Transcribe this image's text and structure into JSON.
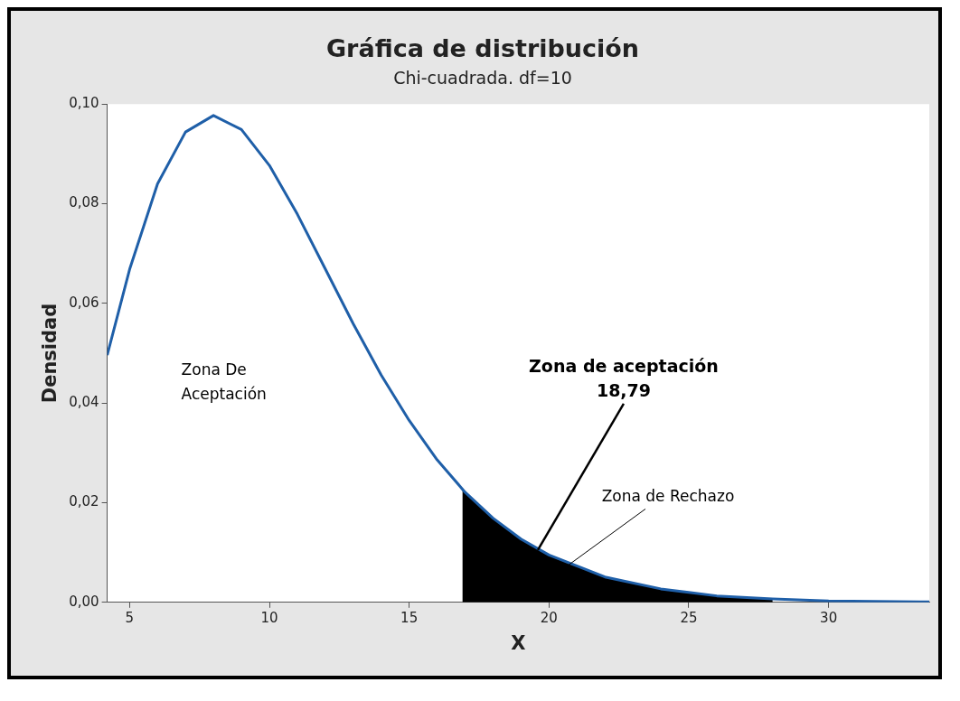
{
  "chart_data": {
    "type": "line",
    "title": "Gráfica de distribución",
    "subtitle": "Chi-cuadrada. df=10",
    "xlabel": "X",
    "ylabel": "Densidad",
    "series": [
      {
        "type": "line",
        "color": "#1f5fa8",
        "x": [
          4.2,
          5,
          6,
          7,
          8,
          9,
          10,
          11,
          12,
          13,
          14,
          15,
          16,
          17,
          18,
          19,
          20,
          22,
          24,
          26,
          28,
          30,
          33.6
        ],
        "values": [
          0.0496,
          0.0668,
          0.084,
          0.0944,
          0.0977,
          0.0949,
          0.0877,
          0.0779,
          0.0669,
          0.0559,
          0.0456,
          0.0365,
          0.0286,
          0.0221,
          0.0169,
          0.0127,
          0.0095,
          0.0051,
          0.0027,
          0.0013,
          0.0007,
          0.0003,
          0.0001
        ]
      },
      {
        "type": "area",
        "color": "#000000",
        "x": [
          16.9,
          17,
          18,
          19,
          20,
          22,
          24,
          26,
          28
        ],
        "values": [
          0.0228,
          0.0221,
          0.0169,
          0.0127,
          0.0095,
          0.0051,
          0.0027,
          0.0013,
          0.0007
        ]
      }
    ],
    "xlim": [
      4.2,
      33.6
    ],
    "ylim": [
      0,
      0.1
    ],
    "xticks": [
      5,
      10,
      15,
      20,
      25,
      30
    ],
    "yticks": [
      {
        "value": 0,
        "label": "0,00"
      },
      {
        "value": 0.02,
        "label": "0,02"
      },
      {
        "value": 0.04,
        "label": "0,04"
      },
      {
        "value": 0.06,
        "label": "0,06"
      },
      {
        "value": 0.08,
        "label": "0,08"
      },
      {
        "value": 0.1,
        "label": "0,10"
      }
    ],
    "grid": false,
    "legend": false,
    "marker": "none",
    "annotations": [
      "Zona De\nAceptación",
      {
        "text": "Zona de aceptación\n18,79",
        "x": 19.6,
        "y": 0.0105
      },
      {
        "text": "Zona de Rechazo",
        "x": 20.7,
        "y": 0.0075
      }
    ]
  }
}
